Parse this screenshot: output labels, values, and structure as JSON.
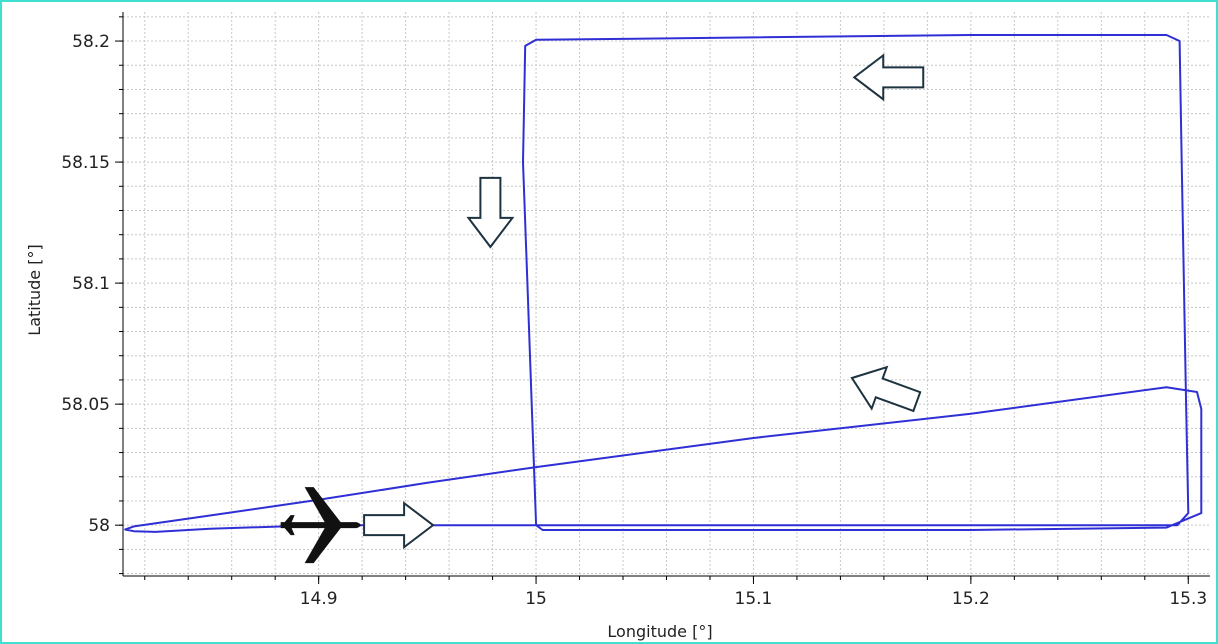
{
  "chart_data": {
    "type": "line",
    "title": "",
    "xlabel": "Longitude [°]",
    "ylabel": "Latitude [°]",
    "xlim": [
      14.81,
      15.31
    ],
    "ylim": [
      57.979,
      58.212
    ],
    "xticks": [
      14.9,
      15.0,
      15.1,
      15.2,
      15.3
    ],
    "xtick_labels": [
      "14.9",
      "15",
      "15.1",
      "15.2",
      "15.3"
    ],
    "yticks": [
      58.0,
      58.05,
      58.1,
      58.15,
      58.2
    ],
    "ytick_labels": [
      "58",
      "58.05",
      "58.1",
      "58.15",
      "58.2"
    ],
    "grid": true,
    "series": [
      {
        "color": "#2f2fd6",
        "x": [
          14.92,
          14.99,
          15.0,
          15.05,
          15.1,
          15.15,
          15.2,
          15.25,
          15.295,
          15.3,
          15.299,
          15.298,
          15.297,
          15.296,
          15.29,
          15.25,
          15.2,
          15.1,
          15.0,
          14.995,
          14.994,
          14.996,
          14.998,
          15.0,
          15.003,
          15.1,
          15.2,
          15.29,
          15.306,
          15.306,
          15.304,
          15.29,
          15.2,
          15.1,
          15.0,
          14.95,
          14.9,
          14.85,
          14.815,
          14.811,
          14.815,
          14.825,
          14.85,
          14.9,
          14.92
        ],
        "y": [
          58.0,
          58.0,
          58.0,
          58.0,
          58.0,
          58.0,
          58.0,
          58.0,
          58.0,
          58.005,
          58.05,
          58.1,
          58.15,
          58.2,
          58.2025,
          58.2025,
          58.2025,
          58.2015,
          58.2005,
          58.198,
          58.15,
          58.1,
          58.05,
          58.0,
          57.998,
          57.998,
          57.998,
          57.999,
          58.005,
          58.048,
          58.055,
          58.057,
          58.046,
          58.036,
          58.024,
          58.0175,
          58.0105,
          58.004,
          57.9995,
          57.9982,
          57.9975,
          57.9972,
          57.9985,
          58.0,
          58.0
        ]
      }
    ],
    "annotations": [
      {
        "type": "airplane-icon",
        "x": 14.9,
        "y": 58.0
      },
      {
        "type": "arrow-right",
        "x": 14.937,
        "y": 58.0
      },
      {
        "type": "arrow-down",
        "x": 14.979,
        "y": 58.129
      },
      {
        "type": "arrow-left",
        "x": 15.162,
        "y": 58.185
      },
      {
        "type": "arrow-up-left",
        "x": 15.16,
        "y": 58.056
      }
    ]
  }
}
